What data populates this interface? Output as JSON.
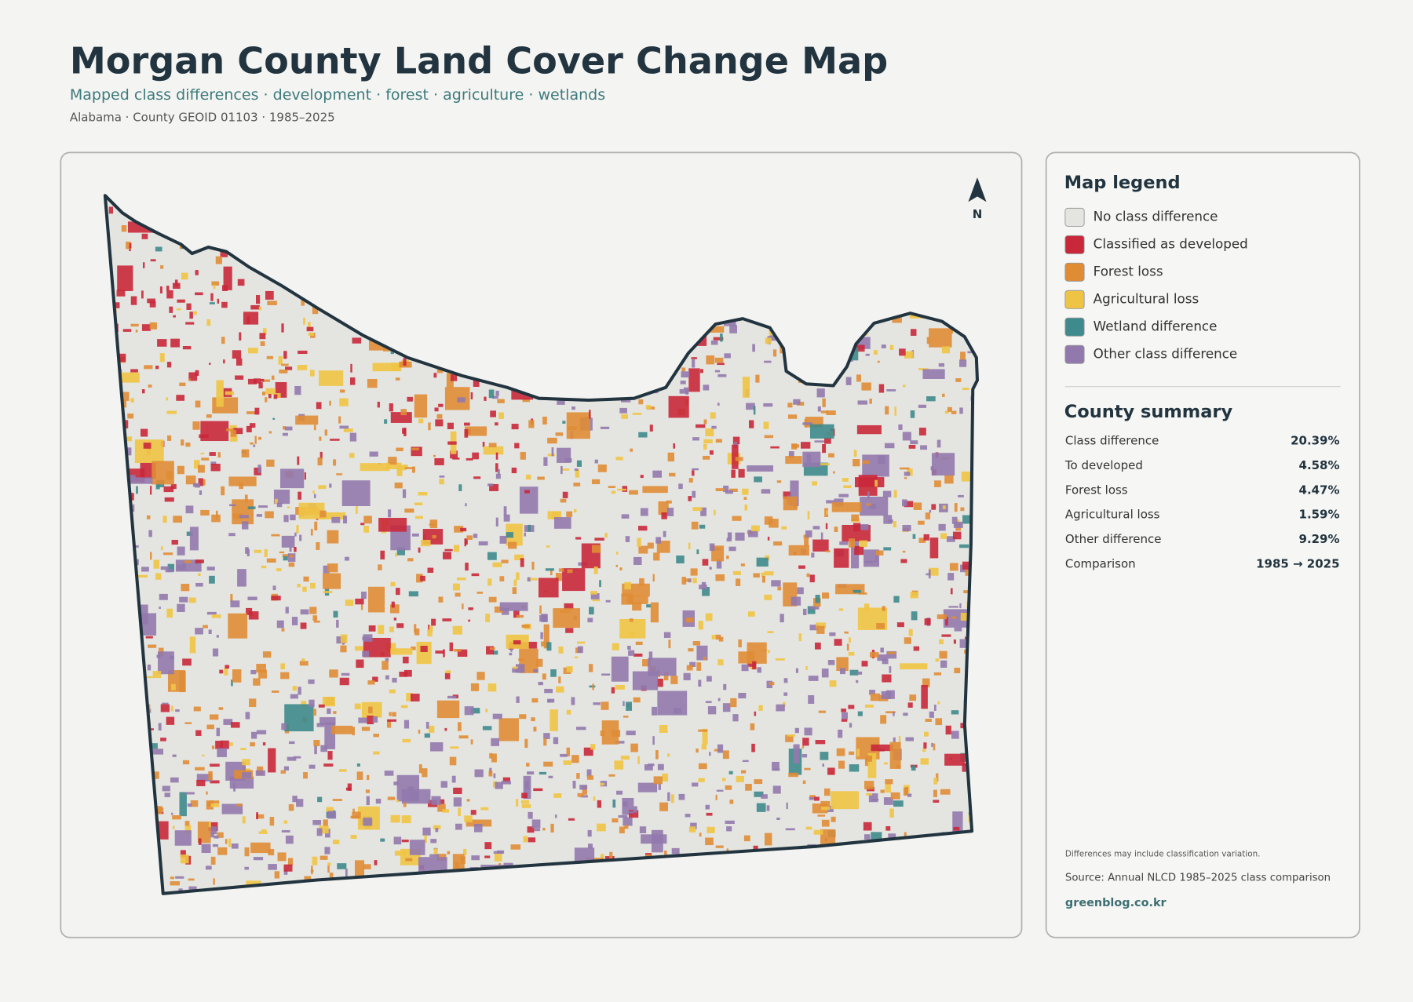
{
  "header": {
    "title": "Morgan County Land Cover Change Map",
    "subtitle": "Mapped class differences · development · forest · agriculture · wetlands",
    "meta": "Alabama · County GEOID 01103 · 1985–2025"
  },
  "map": {
    "north_label": "N"
  },
  "legend": {
    "title": "Map legend",
    "items": [
      {
        "label": "No class difference",
        "color": "#e4e5e1"
      },
      {
        "label": "Classified as developed",
        "color": "#c9283a"
      },
      {
        "label": "Forest loss",
        "color": "#e08c35"
      },
      {
        "label": "Agricultural loss",
        "color": "#efc445"
      },
      {
        "label": "Wetland difference",
        "color": "#3f8a8c"
      },
      {
        "label": "Other class difference",
        "color": "#9279ad"
      }
    ]
  },
  "summary": {
    "title": "County summary",
    "rows": [
      [
        "Class difference",
        "20.39%"
      ],
      [
        "To developed",
        "4.58%"
      ],
      [
        "Forest loss",
        "4.47%"
      ],
      [
        "Agricultural loss",
        "1.59%"
      ],
      [
        "Other difference",
        "9.29%"
      ],
      [
        "Comparison",
        "1985 → 2025"
      ]
    ]
  },
  "notes": {
    "caveat": "Differences may include classification variation.",
    "source": "Source: Annual NLCD 1985–2025 class comparison",
    "site": "greenblog.co.kr"
  }
}
